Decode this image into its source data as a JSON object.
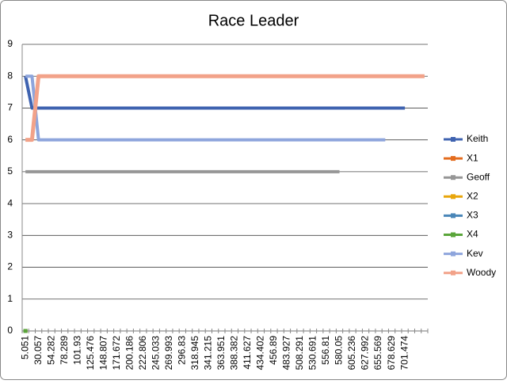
{
  "chart_data": {
    "type": "line",
    "title": "Race Leader",
    "categories": [
      "5.051",
      null,
      "30.057",
      null,
      "54.282",
      null,
      "78.289",
      null,
      "101.93",
      null,
      "125.476",
      null,
      "148.807",
      null,
      "171.672",
      null,
      "200.186",
      null,
      "222.806",
      null,
      "245.033",
      null,
      "269.993",
      null,
      "296.83",
      null,
      "318.945",
      null,
      "341.215",
      null,
      "363.951",
      null,
      "388.382",
      null,
      "411.627",
      null,
      "434.402",
      null,
      "456.89",
      null,
      "483.927",
      null,
      "508.291",
      null,
      "530.691",
      null,
      "556.81",
      null,
      "580.05",
      null,
      "605.236",
      null,
      "627.992",
      null,
      "655.569",
      null,
      "678.629",
      null,
      "701.474",
      null,
      null,
      null
    ],
    "series": [
      {
        "name": "Keith",
        "color": "#3f63b0",
        "values": [
          8,
          7,
          7,
          7,
          7,
          7,
          7,
          7,
          7,
          7,
          7,
          7,
          7,
          7,
          7,
          7,
          7,
          7,
          7,
          7,
          7,
          7,
          7,
          7,
          7,
          7,
          7,
          7,
          7,
          7,
          7,
          7,
          7,
          7,
          7,
          7,
          7,
          7,
          7,
          7,
          7,
          7,
          7,
          7,
          7,
          7,
          7,
          7,
          7,
          7,
          7,
          7,
          7,
          7,
          7,
          7,
          7,
          7,
          7,
          null,
          null,
          null
        ]
      },
      {
        "name": "X1",
        "color": "#e46c1e",
        "values": [
          0,
          null,
          null,
          null,
          null,
          null,
          null,
          null,
          null,
          null,
          null,
          null,
          null,
          null,
          null,
          null,
          null,
          null,
          null,
          null,
          null,
          null,
          null,
          null,
          null,
          null,
          null,
          null,
          null,
          null,
          null,
          null,
          null,
          null,
          null,
          null,
          null,
          null,
          null,
          null,
          null,
          null,
          null,
          null,
          null,
          null,
          null,
          null,
          null,
          null,
          null,
          null,
          null,
          null,
          null,
          null,
          null,
          null,
          null,
          null,
          null,
          null
        ]
      },
      {
        "name": "Geoff",
        "color": "#969696",
        "values": [
          5,
          5,
          5,
          5,
          5,
          5,
          5,
          5,
          5,
          5,
          5,
          5,
          5,
          5,
          5,
          5,
          5,
          5,
          5,
          5,
          5,
          5,
          5,
          5,
          5,
          5,
          5,
          5,
          5,
          5,
          5,
          5,
          5,
          5,
          5,
          5,
          5,
          5,
          5,
          5,
          5,
          5,
          5,
          5,
          5,
          5,
          5,
          5,
          5,
          null,
          null,
          null,
          null,
          null,
          null,
          null,
          null,
          null,
          null,
          null,
          null,
          null
        ]
      },
      {
        "name": "X2",
        "color": "#e8a60c",
        "values": [
          0,
          null,
          null,
          null,
          null,
          null,
          null,
          null,
          null,
          null,
          null,
          null,
          null,
          null,
          null,
          null,
          null,
          null,
          null,
          null,
          null,
          null,
          null,
          null,
          null,
          null,
          null,
          null,
          null,
          null,
          null,
          null,
          null,
          null,
          null,
          null,
          null,
          null,
          null,
          null,
          null,
          null,
          null,
          null,
          null,
          null,
          null,
          null,
          null,
          null,
          null,
          null,
          null,
          null,
          null,
          null,
          null,
          null,
          null,
          null,
          null,
          null
        ]
      },
      {
        "name": "X3",
        "color": "#4a86b8",
        "values": [
          0,
          null,
          null,
          null,
          null,
          null,
          null,
          null,
          null,
          null,
          null,
          null,
          null,
          null,
          null,
          null,
          null,
          null,
          null,
          null,
          null,
          null,
          null,
          null,
          null,
          null,
          null,
          null,
          null,
          null,
          null,
          null,
          null,
          null,
          null,
          null,
          null,
          null,
          null,
          null,
          null,
          null,
          null,
          null,
          null,
          null,
          null,
          null,
          null,
          null,
          null,
          null,
          null,
          null,
          null,
          null,
          null,
          null,
          null,
          null,
          null,
          null
        ]
      },
      {
        "name": "X4",
        "color": "#5aa53a",
        "values": [
          0,
          null,
          null,
          null,
          null,
          null,
          null,
          null,
          null,
          null,
          null,
          null,
          null,
          null,
          null,
          null,
          null,
          null,
          null,
          null,
          null,
          null,
          null,
          null,
          null,
          null,
          null,
          null,
          null,
          null,
          null,
          null,
          null,
          null,
          null,
          null,
          null,
          null,
          null,
          null,
          null,
          null,
          null,
          null,
          null,
          null,
          null,
          null,
          null,
          null,
          null,
          null,
          null,
          null,
          null,
          null,
          null,
          null,
          null,
          null,
          null,
          null
        ]
      },
      {
        "name": "Kev",
        "color": "#8ea5dc",
        "values": [
          8,
          8,
          6,
          6,
          6,
          6,
          6,
          6,
          6,
          6,
          6,
          6,
          6,
          6,
          6,
          6,
          6,
          6,
          6,
          6,
          6,
          6,
          6,
          6,
          6,
          6,
          6,
          6,
          6,
          6,
          6,
          6,
          6,
          6,
          6,
          6,
          6,
          6,
          6,
          6,
          6,
          6,
          6,
          6,
          6,
          6,
          6,
          6,
          6,
          6,
          6,
          6,
          6,
          6,
          6,
          6,
          null,
          null,
          null,
          null,
          null,
          null
        ]
      },
      {
        "name": "Woody",
        "color": "#f2a289",
        "values": [
          6,
          6,
          8,
          8,
          8,
          8,
          8,
          8,
          8,
          8,
          8,
          8,
          8,
          8,
          8,
          8,
          8,
          8,
          8,
          8,
          8,
          8,
          8,
          8,
          8,
          8,
          8,
          8,
          8,
          8,
          8,
          8,
          8,
          8,
          8,
          8,
          8,
          8,
          8,
          8,
          8,
          8,
          8,
          8,
          8,
          8,
          8,
          8,
          8,
          8,
          8,
          8,
          8,
          8,
          8,
          8,
          8,
          8,
          8,
          8,
          8,
          8
        ]
      }
    ],
    "ylim": [
      0,
      9
    ],
    "yticks": [
      0,
      1,
      2,
      3,
      4,
      5,
      6,
      7,
      8,
      9
    ],
    "grid": true,
    "legend": "right"
  }
}
